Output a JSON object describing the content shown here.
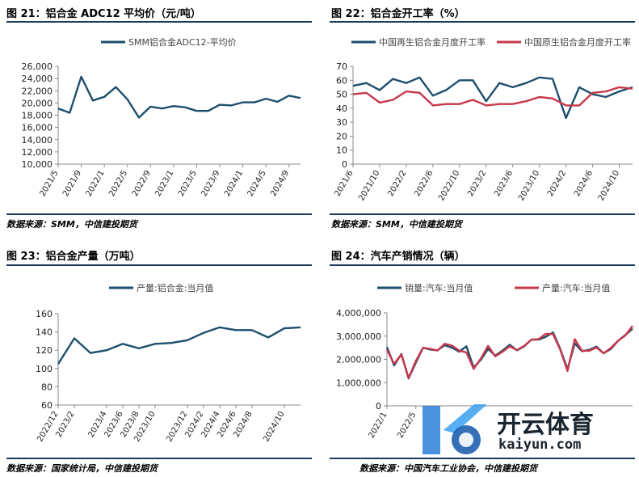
{
  "panels": [
    {
      "title": "图 21：铝合金 ADC12 平均价（元/吨）",
      "source": "数据来源：SMM，中信建投期货"
    },
    {
      "title": "图 22：铝合金开工率（%）",
      "source": "数据来源：SMM，中信建投期货"
    },
    {
      "title": "图 23：铝合金产量（万吨）",
      "source": "数据来源：国家统计局，中信建投期货"
    },
    {
      "title": "图 24：汽车产销情况（辆）",
      "source": "数据来源：中国汽车工业协会，中信建投期货"
    }
  ],
  "watermark": {
    "text": "开云体育",
    "url": "kaiyun.com"
  },
  "chart_data": [
    {
      "type": "line",
      "x": [
        "2021/5",
        "2021/7",
        "2021/9",
        "2021/11",
        "2022/1",
        "2022/3",
        "2022/5",
        "2022/7",
        "2022/9",
        "2022/11",
        "2023/1",
        "2023/3",
        "2023/5",
        "2023/7",
        "2023/9",
        "2023/11",
        "2024/1",
        "2024/3",
        "2024/5",
        "2024/7",
        "2024/9",
        "2024/11"
      ],
      "xticks": [
        "2021/5",
        "2021/9",
        "2022/1",
        "2022/5",
        "2022/9",
        "2023/1",
        "2023/5",
        "2023/9",
        "2024/1",
        "2024/5",
        "2024/9"
      ],
      "series": [
        {
          "name": "SMM铝合金ADC12-平均价",
          "color": "#1d4f6e",
          "values": [
            19100,
            18400,
            24300,
            20400,
            21000,
            22600,
            20600,
            17600,
            19400,
            19100,
            19500,
            19300,
            18700,
            18700,
            19700,
            19600,
            20100,
            20100,
            20700,
            20200,
            21200,
            20800
          ]
        }
      ],
      "ylim": [
        10000,
        26000
      ],
      "yticks": [
        "10,000",
        "12,000",
        "14,000",
        "16,000",
        "18,000",
        "20,000",
        "22,000",
        "24,000",
        "26,000"
      ]
    },
    {
      "type": "line",
      "x": [
        "2021/6",
        "2021/8",
        "2021/10",
        "2021/12",
        "2022/2",
        "2022/4",
        "2022/6",
        "2022/8",
        "2022/10",
        "2022/12",
        "2023/2",
        "2023/4",
        "2023/6",
        "2023/8",
        "2023/10",
        "2023/12",
        "2024/2",
        "2024/4",
        "2024/6",
        "2024/8",
        "2024/10",
        "2024/12"
      ],
      "xticks": [
        "2021/6",
        "2021/10",
        "2022/2",
        "2022/6",
        "2022/10",
        "2023/2",
        "2023/6",
        "2023/10",
        "2024/2",
        "2024/6",
        "2024/10"
      ],
      "series": [
        {
          "name": "中国再生铝合金月度开工率",
          "color": "#1d4f6e",
          "values": [
            56,
            58,
            53,
            61,
            58,
            62,
            49,
            53,
            60,
            60,
            45,
            58,
            55,
            58,
            62,
            61,
            33,
            55,
            50,
            48,
            52,
            55
          ]
        },
        {
          "name": "中国原生铝合金月度开工率",
          "color": "#c7384b",
          "values": [
            50,
            51,
            44,
            46,
            52,
            51,
            42,
            43,
            43,
            46,
            42,
            43,
            43,
            45,
            48,
            47,
            42,
            42,
            51,
            52,
            55,
            54
          ]
        }
      ],
      "ylim": [
        0,
        70
      ],
      "yticks": [
        "0",
        "10",
        "20",
        "30",
        "40",
        "50",
        "60",
        "70"
      ]
    },
    {
      "type": "line",
      "x": [
        "2022/12",
        "2023/2",
        "2023/3",
        "2023/4",
        "2023/6",
        "2023/8",
        "2023/10",
        "2023/11",
        "2023/12",
        "2024/2",
        "2024/4",
        "2024/6",
        "2024/8",
        "2024/9",
        "2024/10",
        "2024/11"
      ],
      "xticks": [
        "2022/12",
        "2023/2",
        "2023/4",
        "2023/6",
        "2023/8",
        "2023/10",
        "2023/12",
        "2024/2",
        "2024/4",
        "2024/6",
        "2024/8",
        "2024/10"
      ],
      "series": [
        {
          "name": "产量:铝合金:当月值",
          "color": "#1d4f6e",
          "values": [
            105,
            133,
            117,
            120,
            127,
            122,
            127,
            128,
            131,
            139,
            145,
            142,
            142,
            134,
            144,
            145
          ]
        }
      ],
      "ylim": [
        60,
        160
      ],
      "yticks": [
        "60",
        "80",
        "100",
        "120",
        "140",
        "160"
      ]
    },
    {
      "type": "line",
      "x": [
        "2022/1",
        "2022/2",
        "2022/3",
        "2022/4",
        "2022/5",
        "2022/6",
        "2022/7",
        "2022/8",
        "2022/9",
        "2022/10",
        "2022/11",
        "2022/12",
        "2023/1",
        "2023/2",
        "2023/3",
        "2023/4",
        "2023/5",
        "2023/6",
        "2023/7",
        "2023/8",
        "2023/9",
        "2023/10",
        "2023/11",
        "2023/12",
        "2024/1",
        "2024/2",
        "2024/3",
        "2024/4",
        "2024/5",
        "2024/6",
        "2024/7",
        "2024/8",
        "2024/9",
        "2024/10",
        "2024/11"
      ],
      "xticks": [
        "2022/1",
        "2022/5"
      ],
      "series": [
        {
          "name": "销量:汽车:当月值",
          "color": "#1d4f6e",
          "values": [
            2530000,
            1740000,
            2230000,
            1180000,
            1860000,
            2500000,
            2420000,
            2390000,
            2610000,
            2500000,
            2330000,
            2560000,
            1650000,
            1980000,
            2450000,
            2160000,
            2380000,
            2630000,
            2390000,
            2560000,
            2850000,
            2850000,
            2970000,
            3160000,
            2440000,
            1580000,
            2690000,
            2350000,
            2410000,
            2550000,
            2260000,
            2450000,
            2800000,
            3050000,
            3320000
          ]
        },
        {
          "name": "产量:汽车:当月值",
          "color": "#c7384b",
          "values": [
            2420000,
            1810000,
            2210000,
            1200000,
            1930000,
            2500000,
            2450000,
            2380000,
            2670000,
            2590000,
            2380000,
            2300000,
            1590000,
            2030000,
            2580000,
            2130000,
            2330000,
            2560000,
            2400000,
            2580000,
            2850000,
            2870000,
            3100000,
            3090000,
            2410000,
            1500000,
            2870000,
            2370000,
            2370000,
            2510000,
            2260000,
            2490000,
            2800000,
            3030000,
            3440000
          ]
        }
      ],
      "ylim": [
        0,
        4000000
      ],
      "yticks": [
        "0",
        "1,000,000",
        "2,000,000",
        "3,000,000",
        "4,000,000"
      ]
    }
  ]
}
